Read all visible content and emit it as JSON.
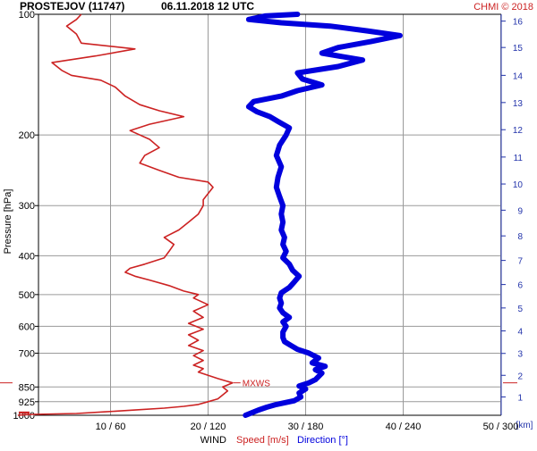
{
  "header": {
    "station": "PROSTEJOV (11747)",
    "datetime": "06.11.2018 12 UTC",
    "copyright": "CHMI © 2018"
  },
  "colors": {
    "speed": "#cc2222",
    "direction": "#0000dd",
    "grid": "#9a9a9a",
    "axis": "#000000",
    "height_axis": "#2233aa",
    "mxws": "#cc2222"
  },
  "chart_data": {
    "type": "line",
    "y_axis": {
      "label": "Pressure [hPa]",
      "scale": "log",
      "range": [
        1000,
        100
      ],
      "ticks": [
        {
          "value": 100,
          "label": "100"
        },
        {
          "value": 200,
          "label": "200"
        },
        {
          "value": 300,
          "label": "300"
        },
        {
          "value": 400,
          "label": "400"
        },
        {
          "value": 500,
          "label": "500"
        },
        {
          "value": 600,
          "label": "600"
        },
        {
          "value": 700,
          "label": "700"
        },
        {
          "value": 850,
          "label": "850"
        },
        {
          "value": 925,
          "label": "925"
        },
        {
          "value": 1000,
          "label": "1000"
        }
      ]
    },
    "x_axis": {
      "title": "WIND",
      "speed_label": "Speed [m/s]",
      "direction_label": "Direction [°]",
      "speed_range": [
        0,
        60
      ],
      "direction_range": [
        0,
        360
      ],
      "tick_speeds": [
        10,
        20,
        30,
        40,
        50
      ],
      "tick_labels": [
        "10 / 60",
        "20 / 120",
        "30 / 180",
        "40 / 240",
        "50 / 300"
      ]
    },
    "height_axis": {
      "unit": "[km]",
      "ticks": [
        {
          "km": 1,
          "p": 900
        },
        {
          "km": 2,
          "p": 795
        },
        {
          "km": 3,
          "p": 701
        },
        {
          "km": 4,
          "p": 616
        },
        {
          "km": 5,
          "p": 540
        },
        {
          "km": 6,
          "p": 472
        },
        {
          "km": 7,
          "p": 411
        },
        {
          "km": 8,
          "p": 357
        },
        {
          "km": 9,
          "p": 308
        },
        {
          "km": 10,
          "p": 265
        },
        {
          "km": 11,
          "p": 227
        },
        {
          "km": 12,
          "p": 194
        },
        {
          "km": 13,
          "p": 166
        },
        {
          "km": 14,
          "p": 142
        },
        {
          "km": 15,
          "p": 121
        },
        {
          "km": 16,
          "p": 104
        }
      ]
    },
    "marker": {
      "label": "MXWS",
      "pressure": 830,
      "speed": 22.5
    },
    "series": [
      {
        "name": "Speed [m/s]",
        "points": [
          [
            1000,
            0.5
          ],
          [
            995,
            2.0
          ],
          [
            990,
            6.5
          ],
          [
            980,
            9.5
          ],
          [
            970,
            12.5
          ],
          [
            960,
            15.5
          ],
          [
            950,
            17.5
          ],
          [
            940,
            19.0
          ],
          [
            925,
            20.0
          ],
          [
            910,
            21.0
          ],
          [
            890,
            21.5
          ],
          [
            870,
            22.0
          ],
          [
            850,
            21.5
          ],
          [
            830,
            22.5
          ],
          [
            810,
            21.0
          ],
          [
            795,
            20.0
          ],
          [
            780,
            19.0
          ],
          [
            765,
            19.5
          ],
          [
            750,
            18.5
          ],
          [
            730,
            19.5
          ],
          [
            710,
            18.5
          ],
          [
            690,
            19.5
          ],
          [
            670,
            18.0
          ],
          [
            650,
            19.0
          ],
          [
            630,
            18.0
          ],
          [
            610,
            19.5
          ],
          [
            590,
            18.0
          ],
          [
            570,
            19.5
          ],
          [
            550,
            18.5
          ],
          [
            530,
            20.0
          ],
          [
            510,
            18.5
          ],
          [
            500,
            19.0
          ],
          [
            490,
            17.5
          ],
          [
            475,
            16.0
          ],
          [
            460,
            14.0
          ],
          [
            450,
            12.5
          ],
          [
            440,
            11.5
          ],
          [
            430,
            12.0
          ],
          [
            420,
            13.5
          ],
          [
            405,
            15.5
          ],
          [
            390,
            16.0
          ],
          [
            375,
            16.5
          ],
          [
            360,
            15.5
          ],
          [
            345,
            17.0
          ],
          [
            330,
            18.0
          ],
          [
            315,
            19.0
          ],
          [
            300,
            19.5
          ],
          [
            290,
            19.5
          ],
          [
            280,
            20.0
          ],
          [
            270,
            20.5
          ],
          [
            262,
            20.0
          ],
          [
            255,
            17.0
          ],
          [
            245,
            15.0
          ],
          [
            235,
            13.0
          ],
          [
            225,
            13.5
          ],
          [
            215,
            15.0
          ],
          [
            205,
            14.0
          ],
          [
            195,
            12.0
          ],
          [
            188,
            14.0
          ],
          [
            180,
            17.5
          ],
          [
            174,
            15.0
          ],
          [
            168,
            13.0
          ],
          [
            160,
            11.5
          ],
          [
            152,
            10.5
          ],
          [
            146,
            9.0
          ],
          [
            142,
            6.0
          ],
          [
            138,
            5.0
          ],
          [
            132,
            4.0
          ],
          [
            127,
            8.5
          ],
          [
            122,
            12.5
          ],
          [
            118,
            7.0
          ],
          [
            112,
            6.5
          ],
          [
            107,
            5.5
          ],
          [
            103,
            6.5
          ],
          [
            100,
            7.0
          ]
        ]
      },
      {
        "name": "Direction [°]",
        "points": [
          [
            1000,
            143
          ],
          [
            985,
            147
          ],
          [
            970,
            151
          ],
          [
            955,
            156
          ],
          [
            940,
            162
          ],
          [
            920,
            173
          ],
          [
            900,
            177
          ],
          [
            880,
            176
          ],
          [
            860,
            180
          ],
          [
            845,
            176
          ],
          [
            830,
            182
          ],
          [
            815,
            186
          ],
          [
            800,
            188
          ],
          [
            785,
            190
          ],
          [
            770,
            186
          ],
          [
            755,
            192
          ],
          [
            740,
            184
          ],
          [
            720,
            188
          ],
          [
            700,
            182
          ],
          [
            685,
            175
          ],
          [
            670,
            171
          ],
          [
            655,
            167
          ],
          [
            640,
            166
          ],
          [
            620,
            166
          ],
          [
            600,
            168
          ],
          [
            585,
            166
          ],
          [
            570,
            170
          ],
          [
            555,
            166
          ],
          [
            540,
            164
          ],
          [
            525,
            165
          ],
          [
            510,
            164
          ],
          [
            495,
            165
          ],
          [
            480,
            170
          ],
          [
            465,
            173
          ],
          [
            450,
            176
          ],
          [
            435,
            172
          ],
          [
            420,
            170
          ],
          [
            405,
            166
          ],
          [
            390,
            168
          ],
          [
            375,
            166
          ],
          [
            360,
            167
          ],
          [
            345,
            165
          ],
          [
            330,
            166
          ],
          [
            315,
            165
          ],
          [
            300,
            166
          ],
          [
            285,
            164
          ],
          [
            270,
            162
          ],
          [
            255,
            163
          ],
          [
            240,
            165
          ],
          [
            225,
            162
          ],
          [
            212,
            164
          ],
          [
            200,
            168
          ],
          [
            192,
            170
          ],
          [
            185,
            163
          ],
          [
            180,
            158
          ],
          [
            175,
            150
          ],
          [
            170,
            145
          ],
          [
            165,
            148
          ],
          [
            160,
            165
          ],
          [
            155,
            175
          ],
          [
            150,
            190
          ],
          [
            145,
            178
          ],
          [
            140,
            175
          ],
          [
            135,
            200
          ],
          [
            130,
            215
          ],
          [
            125,
            190
          ],
          [
            121,
            200
          ],
          [
            117,
            220
          ],
          [
            113,
            238
          ],
          [
            110,
            218
          ],
          [
            107,
            195
          ],
          [
            105,
            165
          ],
          [
            103,
            145
          ],
          [
            101,
            155
          ],
          [
            100,
            175
          ]
        ]
      }
    ]
  }
}
